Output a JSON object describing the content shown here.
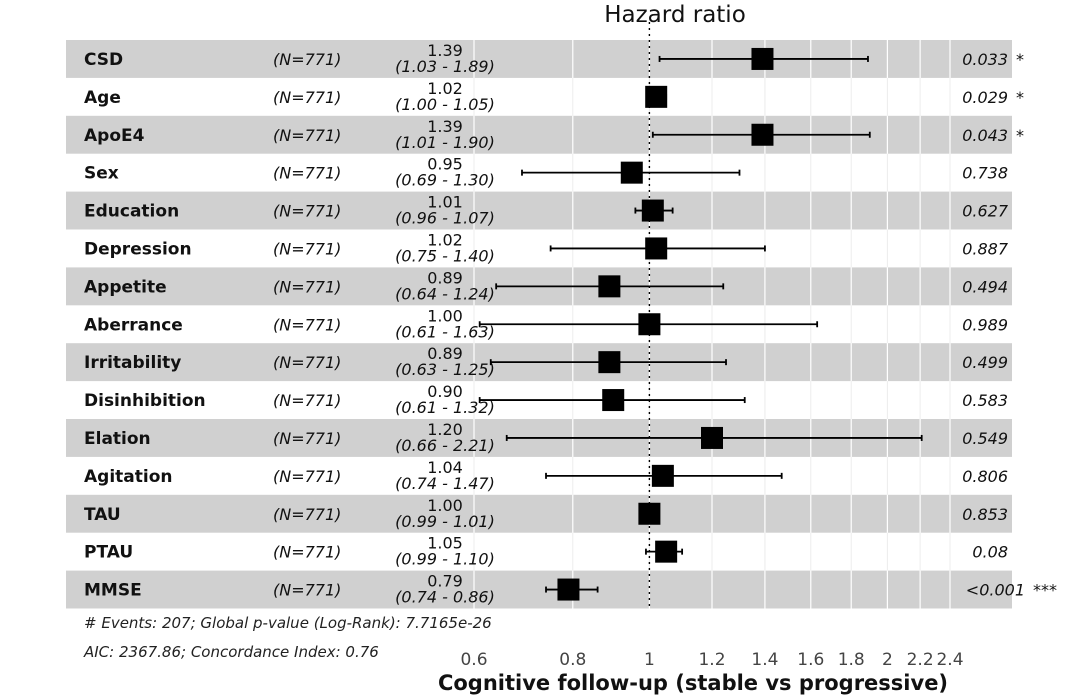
{
  "chart_data": {
    "type": "forest",
    "title": "Hazard ratio",
    "xlabel": "Cognitive follow-up (stable vs progressive)",
    "x_scale": "log",
    "xlim": [
      0.6,
      2.4
    ],
    "ticks": [
      "0.6",
      "0.8",
      "1",
      "1.2",
      "1.4",
      "1.6",
      "1.8",
      "2",
      "2.2",
      "2.4"
    ],
    "tick_values": [
      0.6,
      0.8,
      1.0,
      1.2,
      1.4,
      1.6,
      1.8,
      2.0,
      2.2,
      2.4
    ],
    "reference_line": 1,
    "rows": [
      {
        "variable": "CSD",
        "n": "(N=771)",
        "hr": "1.39",
        "ci": "(1.03 - 1.89)",
        "p": "0.033",
        "sig": "*",
        "est": 1.39,
        "lo": 1.03,
        "hi": 1.89
      },
      {
        "variable": "Age",
        "n": "(N=771)",
        "hr": "1.02",
        "ci": "(1.00 - 1.05)",
        "p": "0.029",
        "sig": "*",
        "est": 1.02,
        "lo": 1.0,
        "hi": 1.05
      },
      {
        "variable": "ApoE4",
        "n": "(N=771)",
        "hr": "1.39",
        "ci": "(1.01 - 1.90)",
        "p": "0.043",
        "sig": "*",
        "est": 1.39,
        "lo": 1.01,
        "hi": 1.9
      },
      {
        "variable": "Sex",
        "n": "(N=771)",
        "hr": "0.95",
        "ci": "(0.69 - 1.30)",
        "p": "0.738",
        "sig": "",
        "est": 0.95,
        "lo": 0.69,
        "hi": 1.3
      },
      {
        "variable": "Education",
        "n": "(N=771)",
        "hr": "1.01",
        "ci": "(0.96 - 1.07)",
        "p": "0.627",
        "sig": "",
        "est": 1.01,
        "lo": 0.96,
        "hi": 1.07
      },
      {
        "variable": "Depression",
        "n": "(N=771)",
        "hr": "1.02",
        "ci": "(0.75 - 1.40)",
        "p": "0.887",
        "sig": "",
        "est": 1.02,
        "lo": 0.75,
        "hi": 1.4
      },
      {
        "variable": "Appetite",
        "n": "(N=771)",
        "hr": "0.89",
        "ci": "(0.64 - 1.24)",
        "p": "0.494",
        "sig": "",
        "est": 0.89,
        "lo": 0.64,
        "hi": 1.24
      },
      {
        "variable": "Aberrance",
        "n": "(N=771)",
        "hr": "1.00",
        "ci": "(0.61 - 1.63)",
        "p": "0.989",
        "sig": "",
        "est": 1.0,
        "lo": 0.61,
        "hi": 1.63
      },
      {
        "variable": "Irritability",
        "n": "(N=771)",
        "hr": "0.89",
        "ci": "(0.63 - 1.25)",
        "p": "0.499",
        "sig": "",
        "est": 0.89,
        "lo": 0.63,
        "hi": 1.25
      },
      {
        "variable": "Disinhibition",
        "n": "(N=771)",
        "hr": "0.90",
        "ci": "(0.61 - 1.32)",
        "p": "0.583",
        "sig": "",
        "est": 0.9,
        "lo": 0.61,
        "hi": 1.32
      },
      {
        "variable": "Elation",
        "n": "(N=771)",
        "hr": "1.20",
        "ci": "(0.66 - 2.21)",
        "p": "0.549",
        "sig": "",
        "est": 1.2,
        "lo": 0.66,
        "hi": 2.21
      },
      {
        "variable": "Agitation",
        "n": "(N=771)",
        "hr": "1.04",
        "ci": "(0.74 - 1.47)",
        "p": "0.806",
        "sig": "",
        "est": 1.04,
        "lo": 0.74,
        "hi": 1.47
      },
      {
        "variable": "TAU",
        "n": "(N=771)",
        "hr": "1.00",
        "ci": "(0.99 - 1.01)",
        "p": "0.853",
        "sig": "",
        "est": 1.0,
        "lo": 0.99,
        "hi": 1.01
      },
      {
        "variable": "PTAU",
        "n": "(N=771)",
        "hr": "1.05",
        "ci": "(0.99 - 1.10)",
        "p": "0.08",
        "sig": "",
        "est": 1.05,
        "lo": 0.99,
        "hi": 1.1
      },
      {
        "variable": "MMSE",
        "n": "(N=771)",
        "hr": "0.79",
        "ci": "(0.74 - 0.86)",
        "p": "<0.001",
        "sig": "***",
        "est": 0.79,
        "lo": 0.74,
        "hi": 0.86
      }
    ],
    "footnote_1": "# Events: 207; Global p-value (Log-Rank): 7.7165e-26",
    "footnote_2": "AIC: 2367.86; Concordance Index: 0.76",
    "colors": {
      "stripe": "#d0d0d0",
      "marker": "#000000",
      "grid": "#ffffff"
    }
  }
}
